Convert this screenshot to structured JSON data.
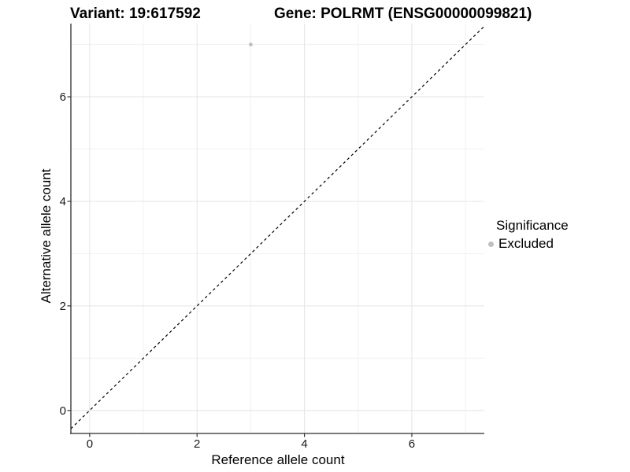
{
  "chart_data": {
    "type": "scatter",
    "title_left": "Variant: 19:617592",
    "title_right": "Gene: POLRMT (ENSG00000099821)",
    "xlabel": "Reference allele count",
    "ylabel": "Alternative allele count",
    "xlim": [
      -0.35,
      7.35
    ],
    "ylim": [
      -0.44,
      7.4
    ],
    "x_ticks": [
      0,
      2,
      4,
      6
    ],
    "y_ticks": [
      0,
      2,
      4,
      6
    ],
    "x_minor_gridlines": [
      1,
      3,
      5,
      7
    ],
    "y_minor_gridlines": [
      1,
      3,
      5,
      7
    ],
    "grid": "major+minor",
    "legend_position": "right",
    "series": [
      {
        "name": "Excluded",
        "color": "#bfbfbf",
        "points": [
          {
            "x": 3,
            "y": 7
          }
        ]
      }
    ],
    "reference_line": {
      "kind": "identity",
      "equation": "y = x",
      "style": "dashed",
      "color": "#000000"
    },
    "legend": {
      "title": "Significance",
      "entries": [
        {
          "label": "Excluded",
          "color": "#bfbfbf"
        }
      ]
    }
  },
  "colors": {
    "background": "#ffffff",
    "axis_line": "#2b2b2b",
    "tick_mark": "#333333",
    "grid_major": "#e4e4e4",
    "grid_minor": "#f1f1f1",
    "tick_text": "#1a1a1a",
    "title_text": "#000000",
    "point": "#bfbfbf"
  }
}
